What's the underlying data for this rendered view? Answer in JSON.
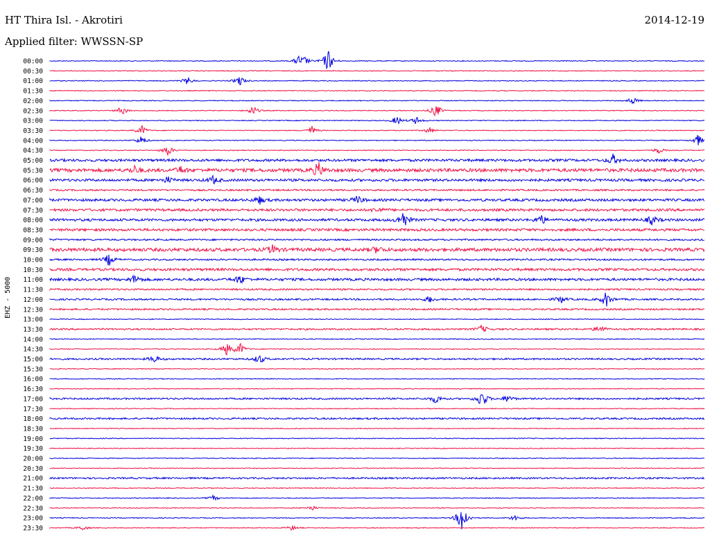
{
  "header": {
    "station": "HT Thira Isl. - Akrotiri",
    "date": "2014-12-19",
    "filter": "Applied filter: WWSSN-SP"
  },
  "channel_label": "EHZ - 5000",
  "colors": {
    "trace_a": "#0000dd",
    "trace_b": "#ee1144"
  },
  "chart_data": {
    "type": "line",
    "title": "HT Thira Isl. - Akrotiri",
    "ylabel": "EHZ - 5000",
    "hours": [
      "00:00",
      "00:30",
      "01:00",
      "01:30",
      "02:00",
      "02:30",
      "03:00",
      "03:30",
      "04:00",
      "04:30",
      "05:00",
      "05:30",
      "06:00",
      "06:30",
      "07:00",
      "07:30",
      "08:00",
      "08:30",
      "09:00",
      "09:30",
      "10:00",
      "10:30",
      "11:00",
      "11:30",
      "12:00",
      "12:30",
      "13:00",
      "13:30",
      "14:00",
      "14:30",
      "15:00",
      "15:30",
      "16:00",
      "16:30",
      "17:00",
      "17:30",
      "18:00",
      "18:30",
      "19:00",
      "19:30",
      "20:00",
      "20:30",
      "21:00",
      "21:30",
      "22:00",
      "22:30",
      "23:00",
      "23:30"
    ],
    "noise_level": [
      1,
      1,
      1,
      1,
      1,
      1,
      1,
      1,
      1,
      1,
      3,
      4,
      3,
      2,
      3,
      3,
      3,
      3,
      2,
      4,
      2,
      3,
      3,
      2,
      2,
      2,
      1,
      2,
      1,
      1,
      2,
      1,
      1,
      1,
      2,
      1,
      2,
      1,
      1,
      1,
      1,
      1,
      2,
      1,
      1,
      1,
      1,
      1
    ],
    "events": [
      {
        "row": 0,
        "pos": 0.38,
        "amp": 7
      },
      {
        "row": 0,
        "pos": 0.425,
        "amp": 18
      },
      {
        "row": 0,
        "pos": 0.39,
        "amp": 5
      },
      {
        "row": 2,
        "pos": 0.21,
        "amp": 6
      },
      {
        "row": 2,
        "pos": 0.29,
        "amp": 8
      },
      {
        "row": 4,
        "pos": 0.89,
        "amp": 6
      },
      {
        "row": 5,
        "pos": 0.11,
        "amp": 7
      },
      {
        "row": 5,
        "pos": 0.31,
        "amp": 8
      },
      {
        "row": 5,
        "pos": 0.59,
        "amp": 11
      },
      {
        "row": 6,
        "pos": 0.53,
        "amp": 7
      },
      {
        "row": 6,
        "pos": 0.56,
        "amp": 6
      },
      {
        "row": 7,
        "pos": 0.14,
        "amp": 8
      },
      {
        "row": 7,
        "pos": 0.4,
        "amp": 7
      },
      {
        "row": 7,
        "pos": 0.58,
        "amp": 5
      },
      {
        "row": 8,
        "pos": 0.14,
        "amp": 7
      },
      {
        "row": 8,
        "pos": 0.99,
        "amp": 9
      },
      {
        "row": 9,
        "pos": 0.18,
        "amp": 9
      },
      {
        "row": 9,
        "pos": 0.93,
        "amp": 5
      },
      {
        "row": 10,
        "pos": 0.86,
        "amp": 8
      },
      {
        "row": 11,
        "pos": 0.13,
        "amp": 6
      },
      {
        "row": 11,
        "pos": 0.2,
        "amp": 5
      },
      {
        "row": 11,
        "pos": 0.41,
        "amp": 12
      },
      {
        "row": 12,
        "pos": 0.18,
        "amp": 5
      },
      {
        "row": 12,
        "pos": 0.25,
        "amp": 6
      },
      {
        "row": 14,
        "pos": 0.32,
        "amp": 6
      },
      {
        "row": 14,
        "pos": 0.47,
        "amp": 6
      },
      {
        "row": 15,
        "pos": 0.5,
        "amp": 4
      },
      {
        "row": 16,
        "pos": 0.54,
        "amp": 14
      },
      {
        "row": 16,
        "pos": 0.75,
        "amp": 8
      },
      {
        "row": 16,
        "pos": 0.92,
        "amp": 7
      },
      {
        "row": 19,
        "pos": 0.34,
        "amp": 6
      },
      {
        "row": 19,
        "pos": 0.5,
        "amp": 5
      },
      {
        "row": 20,
        "pos": 0.09,
        "amp": 9
      },
      {
        "row": 22,
        "pos": 0.13,
        "amp": 7
      },
      {
        "row": 22,
        "pos": 0.29,
        "amp": 7
      },
      {
        "row": 24,
        "pos": 0.58,
        "amp": 5
      },
      {
        "row": 24,
        "pos": 0.78,
        "amp": 6
      },
      {
        "row": 24,
        "pos": 0.85,
        "amp": 12
      },
      {
        "row": 27,
        "pos": 0.66,
        "amp": 6
      },
      {
        "row": 27,
        "pos": 0.84,
        "amp": 7
      },
      {
        "row": 29,
        "pos": 0.27,
        "amp": 10
      },
      {
        "row": 29,
        "pos": 0.29,
        "amp": 10
      },
      {
        "row": 30,
        "pos": 0.16,
        "amp": 6
      },
      {
        "row": 30,
        "pos": 0.32,
        "amp": 7
      },
      {
        "row": 34,
        "pos": 0.59,
        "amp": 7
      },
      {
        "row": 34,
        "pos": 0.66,
        "amp": 15
      },
      {
        "row": 34,
        "pos": 0.7,
        "amp": 6
      },
      {
        "row": 44,
        "pos": 0.25,
        "amp": 4
      },
      {
        "row": 45,
        "pos": 0.4,
        "amp": 4
      },
      {
        "row": 46,
        "pos": 0.63,
        "amp": 26
      },
      {
        "row": 46,
        "pos": 0.71,
        "amp": 5
      },
      {
        "row": 47,
        "pos": 0.05,
        "amp": 4
      },
      {
        "row": 47,
        "pos": 0.37,
        "amp": 4
      }
    ]
  }
}
